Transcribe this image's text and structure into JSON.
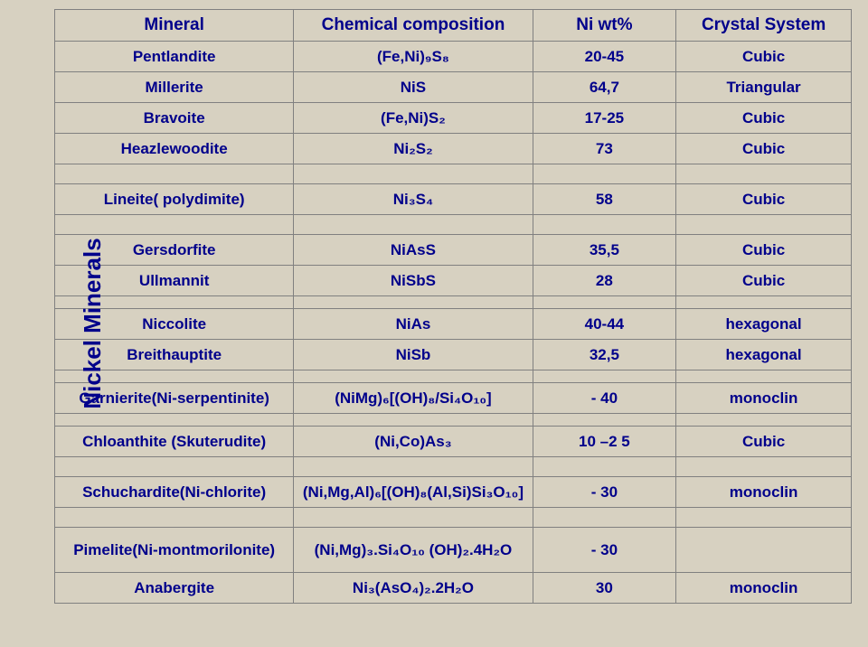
{
  "sidebar_label": "Nickel Minerals",
  "headers": {
    "mineral": "Mineral",
    "comp": "Chemical composition",
    "niwt": "Ni wt%",
    "crystal": "Crystal System"
  },
  "rows": {
    "pentlandite": {
      "mineral": "Pentlandite",
      "comp": "(Fe,Ni)₉S₈",
      "niwt": "20-45",
      "crystal": "Cubic"
    },
    "millerite": {
      "mineral": "Millerite",
      "comp": "NiS",
      "niwt": "64,7",
      "crystal": "Triangular"
    },
    "bravoite": {
      "mineral": "Bravoite",
      "comp": "(Fe,Ni)S₂",
      "niwt": "17-25",
      "crystal": "Cubic"
    },
    "heazlewoodite": {
      "mineral": "Heazlewoodite",
      "comp": "Ni₂S₂",
      "niwt": "73",
      "crystal": "Cubic"
    },
    "lineite": {
      "mineral": "Lineite( polydimite)",
      "comp": "Ni₃S₄",
      "niwt": "58",
      "crystal": "Cubic"
    },
    "gersdorfite": {
      "mineral": "Gersdorfite",
      "comp": "NiAsS",
      "niwt": "35,5",
      "crystal": "Cubic"
    },
    "ullmannit": {
      "mineral": "Ullmannit",
      "comp": "NiSbS",
      "niwt": "28",
      "crystal": "Cubic"
    },
    "niccolite": {
      "mineral": "Niccolite",
      "comp": "NiAs",
      "niwt": "40-44",
      "crystal": "hexagonal"
    },
    "breithauptite": {
      "mineral": "Breithauptite",
      "comp": "NiSb",
      "niwt": "32,5",
      "crystal": "hexagonal"
    },
    "garnierite": {
      "mineral": "Garnierite(Ni-serpentinite)",
      "comp": "(NiMg)₆[(OH)₈/Si₄O₁₀]",
      "niwt": "- 40",
      "crystal": "monoclin"
    },
    "chloanthite": {
      "mineral": "Chloanthite (Skuterudite)",
      "comp": "(Ni,Co)As₃",
      "niwt": "10 –2 5",
      "crystal": "Cubic"
    },
    "schuchardite": {
      "mineral": "Schuchardite(Ni-chlorite)",
      "comp": "(Ni,Mg,Al)₆[(OH)₈(Al,Si)Si₃O₁₀]",
      "niwt": "- 30",
      "crystal": "monoclin"
    },
    "pimelite": {
      "mineral": "Pimelite(Ni-montmorilonite)",
      "comp": "(Ni,Mg)₃.Si₄O₁₀ (OH)₂.4H₂O",
      "niwt": "- 30",
      "crystal": ""
    },
    "anabergite": {
      "mineral": "Anabergite",
      "comp": "Ni₃(AsO₄)₂.2H₂O",
      "niwt": "30",
      "crystal": "monoclin"
    }
  }
}
